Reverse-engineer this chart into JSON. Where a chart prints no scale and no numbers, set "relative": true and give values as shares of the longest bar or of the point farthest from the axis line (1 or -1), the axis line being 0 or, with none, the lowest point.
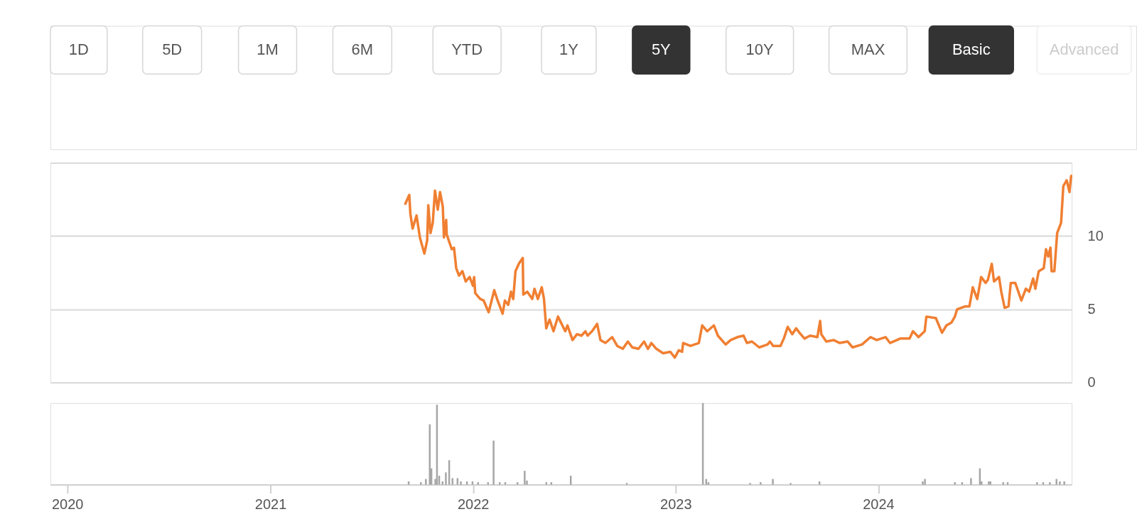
{
  "chart_data": [
    {
      "type": "other",
      "annotations": [
        "1D",
        "5D",
        "1M",
        "6M",
        "YTD",
        "1Y",
        "5Y",
        "10Y",
        "MAX",
        "Basic",
        "Advanced"
      ]
    },
    {
      "type": "line",
      "xlim": [
        "2019-12-08",
        "2024-12-08"
      ],
      "ylim": [
        0,
        15
      ],
      "yticks": [
        0,
        5,
        10,
        {
          "value": 15,
          "label": null
        }
      ],
      "grid": "y",
      "tick_labels": "y",
      "x": [
        "2021-09-03",
        "2021-09-10",
        "2021-09-12",
        "2021-09-16",
        "2021-09-23",
        "2021-09-29",
        "2021-10-07",
        "2021-10-12",
        "2021-10-14",
        "2021-10-18",
        "2021-10-22",
        "2021-10-26",
        "2021-10-31",
        "2021-11-04",
        "2021-11-09",
        "2021-11-11",
        "2021-11-15",
        "2021-11-16",
        "2021-11-25",
        "2021-11-29",
        "2021-12-03",
        "2021-12-08",
        "2021-12-14",
        "2021-12-20",
        "2021-12-27",
        "2022-01-02",
        "2022-01-04",
        "2022-01-06",
        "2022-01-15",
        "2022-01-21",
        "2022-01-30",
        "2022-02-09",
        "2022-02-15",
        "2022-02-24",
        "2022-02-28",
        "2022-03-06",
        "2022-03-11",
        "2022-03-15",
        "2022-03-19",
        "2022-03-25",
        "2022-04-01",
        "2022-04-02",
        "2022-04-09",
        "2022-04-18",
        "2022-04-22",
        "2022-04-28",
        "2022-05-05",
        "2022-05-09",
        "2022-05-13",
        "2022-05-19",
        "2022-05-26",
        "2022-06-03",
        "2022-06-16",
        "2022-06-20",
        "2022-06-29",
        "2022-07-07",
        "2022-07-15",
        "2022-07-22",
        "2022-07-26",
        "2022-08-03",
        "2022-08-12",
        "2022-08-18",
        "2022-08-27",
        "2022-09-08",
        "2022-09-17",
        "2022-09-27",
        "2022-10-06",
        "2022-10-14",
        "2022-10-25",
        "2022-11-04",
        "2022-11-11",
        "2022-11-17",
        "2022-11-26",
        "2022-12-08",
        "2022-12-21",
        "2022-12-29",
        "2023-01-05",
        "2023-01-11",
        "2023-01-13",
        "2023-01-26",
        "2023-02-10",
        "2023-02-16",
        "2023-02-25",
        "2023-03-09",
        "2023-03-16",
        "2023-03-30",
        "2023-04-08",
        "2023-04-20",
        "2023-05-01",
        "2023-05-07",
        "2023-05-16",
        "2023-05-29",
        "2023-06-13",
        "2023-06-17",
        "2023-06-23",
        "2023-07-06",
        "2023-07-12",
        "2023-07-19",
        "2023-07-27",
        "2023-08-03",
        "2023-08-09",
        "2023-08-18",
        "2023-08-28",
        "2023-09-10",
        "2023-09-15",
        "2023-09-17",
        "2023-09-26",
        "2023-10-09",
        "2023-10-20",
        "2023-11-03",
        "2023-11-12",
        "2023-11-29",
        "2023-12-14",
        "2023-12-25",
        "2024-01-10",
        "2024-01-18",
        "2024-02-05",
        "2024-02-22",
        "2024-02-28",
        "2024-03-09",
        "2024-03-20",
        "2024-03-23",
        "2024-04-09",
        "2024-04-20",
        "2024-04-28",
        "2024-05-07",
        "2024-05-13",
        "2024-05-17",
        "2024-06-01",
        "2024-06-08",
        "2024-06-14",
        "2024-06-22",
        "2024-06-29",
        "2024-07-07",
        "2024-07-11",
        "2024-07-18",
        "2024-07-22",
        "2024-07-31",
        "2024-08-04",
        "2024-08-10",
        "2024-08-17",
        "2024-08-21",
        "2024-08-29",
        "2024-09-09",
        "2024-09-17",
        "2024-09-23",
        "2024-09-30",
        "2024-10-04",
        "2024-10-10",
        "2024-10-19",
        "2024-10-23",
        "2024-10-27",
        "2024-10-31",
        "2024-11-02",
        "2024-11-07",
        "2024-11-12",
        "2024-11-19",
        "2024-11-23",
        "2024-11-29",
        "2024-12-04",
        "2024-12-07"
      ],
      "series": [
        {
          "color": "#f07f32",
          "values": [
            12.2,
            12.8,
            11.5,
            10.5,
            11.4,
            9.9,
            8.8,
            9.7,
            12.1,
            10.2,
            10.9,
            13.1,
            11.8,
            13.0,
            12.0,
            9.9,
            11.1,
            10.1,
            9.1,
            9.2,
            7.8,
            7.3,
            7.6,
            6.9,
            7.2,
            6.6,
            7.2,
            6.1,
            5.7,
            5.6,
            4.8,
            6.3,
            5.6,
            4.7,
            5.6,
            5.3,
            6.2,
            5.7,
            7.6,
            8.1,
            8.5,
            6.0,
            6.2,
            5.7,
            6.4,
            5.7,
            6.5,
            5.7,
            3.7,
            4.3,
            3.5,
            4.5,
            3.5,
            3.9,
            2.9,
            3.3,
            3.2,
            3.5,
            3.2,
            3.5,
            4.0,
            2.9,
            2.7,
            3.1,
            2.5,
            2.3,
            2.8,
            2.4,
            2.3,
            2.8,
            2.3,
            2.7,
            2.3,
            2.0,
            2.1,
            1.7,
            2.2,
            2.1,
            2.7,
            2.5,
            2.7,
            3.9,
            3.5,
            3.9,
            3.2,
            2.6,
            2.9,
            3.1,
            3.2,
            2.7,
            2.8,
            2.4,
            2.6,
            2.8,
            2.5,
            2.5,
            3.0,
            3.8,
            3.3,
            3.7,
            3.4,
            3.0,
            3.2,
            3.1,
            4.2,
            3.3,
            2.8,
            2.9,
            2.7,
            2.8,
            2.4,
            2.6,
            3.1,
            2.9,
            3.1,
            2.7,
            3.0,
            3.0,
            3.5,
            3.1,
            3.5,
            4.5,
            4.4,
            3.4,
            3.9,
            4.1,
            4.5,
            5.0,
            5.2,
            5.2,
            6.5,
            5.7,
            7.2,
            6.8,
            7.0,
            8.1,
            6.9,
            7.2,
            6.2,
            5.1,
            5.2,
            6.8,
            6.8,
            5.6,
            6.4,
            6.2,
            7.1,
            6.4,
            7.6,
            7.8,
            9.1,
            8.6,
            9.2,
            7.6,
            7.6,
            10.2,
            10.9,
            13.4,
            13.8,
            13.0,
            14.1
          ]
        }
      ]
    },
    {
      "type": "bar",
      "relative": true,
      "color": "#a6a6a6",
      "xlim": [
        "2019-12-08",
        "2024-12-08"
      ],
      "xticks": [
        "2020",
        "2021",
        "2022",
        "2023",
        "2024"
      ],
      "tick_labels": "x",
      "x": [
        "2021-09-07",
        "2021-09-29",
        "2021-10-08",
        "2021-10-15",
        "2021-10-18",
        "2021-10-25",
        "2021-10-28",
        "2021-11-01",
        "2021-11-07",
        "2021-11-13",
        "2021-11-19",
        "2021-11-25",
        "2021-12-04",
        "2021-12-10",
        "2021-12-21",
        "2021-12-31",
        "2022-01-10",
        "2022-01-28",
        "2022-02-07",
        "2022-02-18",
        "2022-02-28",
        "2022-03-22",
        "2022-04-04",
        "2022-04-08",
        "2022-05-13",
        "2022-05-22",
        "2022-06-26",
        "2022-10-05",
        "2023-02-19",
        "2023-02-25",
        "2023-03-01",
        "2023-05-15",
        "2023-06-03",
        "2023-06-25",
        "2023-07-27",
        "2023-09-17",
        "2024-03-21",
        "2024-03-25",
        "2024-05-18",
        "2024-05-31",
        "2024-06-16",
        "2024-07-02",
        "2024-07-05",
        "2024-07-18",
        "2024-07-21",
        "2024-08-13",
        "2024-08-21",
        "2024-10-13",
        "2024-10-24",
        "2024-11-05",
        "2024-11-17",
        "2024-11-23",
        "2024-12-01"
      ],
      "values": [
        0.04,
        0.03,
        0.07,
        0.74,
        0.2,
        0.07,
        0.98,
        0.11,
        0.04,
        0.15,
        0.3,
        0.08,
        0.08,
        0.04,
        0.04,
        0.04,
        0.03,
        0.03,
        0.54,
        0.03,
        0.03,
        0.03,
        0.17,
        0.05,
        0.03,
        0.03,
        0.11,
        0.02,
        1.0,
        0.07,
        0.03,
        0.02,
        0.03,
        0.07,
        0.02,
        0.04,
        0.04,
        0.07,
        0.03,
        0.03,
        0.08,
        0.2,
        0.04,
        0.04,
        0.04,
        0.03,
        0.03,
        0.03,
        0.03,
        0.03,
        0.07,
        0.04,
        0.04
      ]
    }
  ]
}
